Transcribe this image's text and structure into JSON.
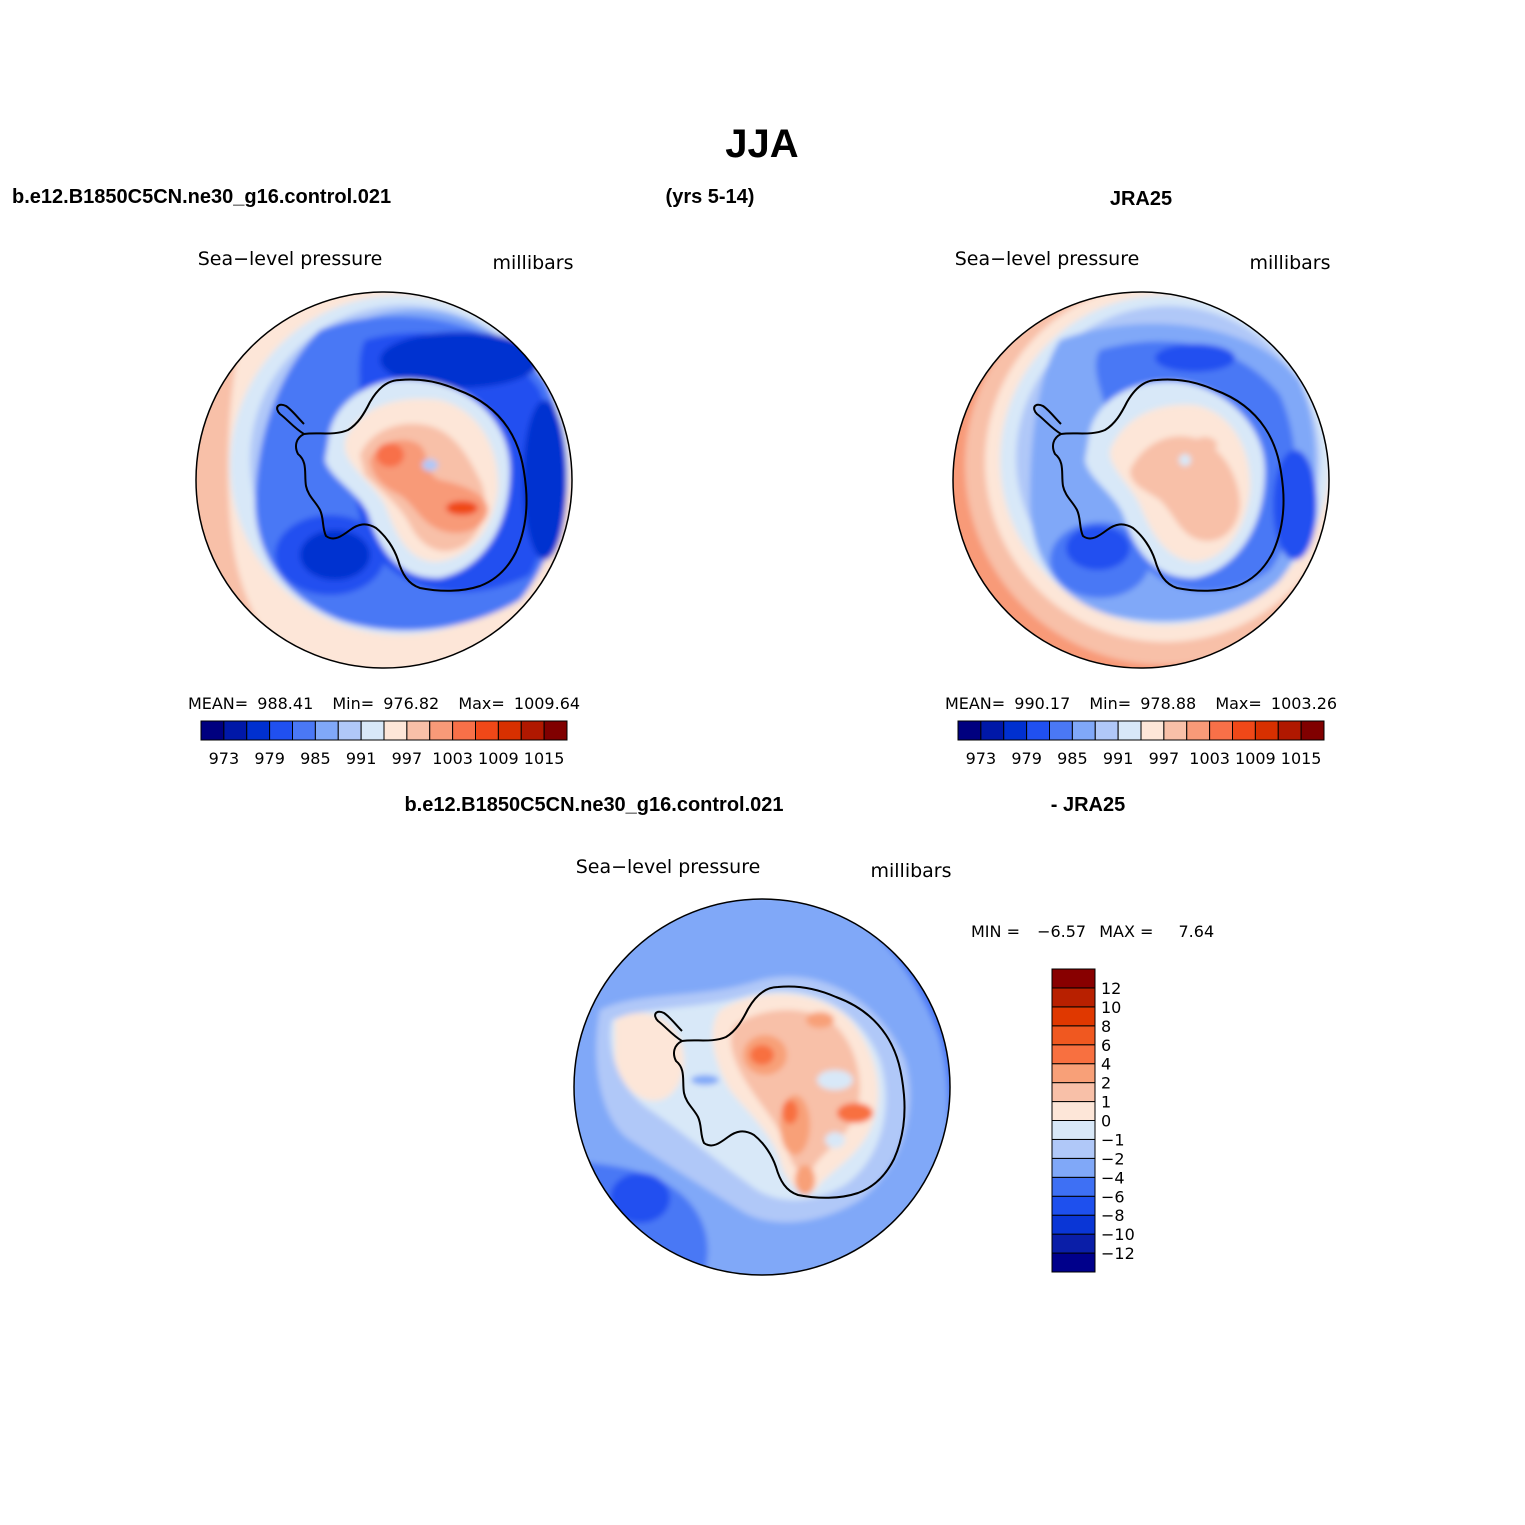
{
  "figure": {
    "title": "JJA",
    "case_label": "b.e12.B1850C5CN.ne30_g16.control.021",
    "years_label": "(yrs 5-14)",
    "obs_label": "JRA25",
    "diff_case_label": "b.e12.B1850C5CN.ne30_g16.control.021",
    "diff_obs_label": "- JRA25"
  },
  "palette": {
    "abs": [
      "#00007f",
      "#0018a8",
      "#0030d0",
      "#2050f0",
      "#4a78f5",
      "#80a8f8",
      "#b0c8f8",
      "#d8e8f8",
      "#fde6d8",
      "#f8c0a8",
      "#f89a78",
      "#f87048",
      "#f04818",
      "#d83000",
      "#b01800",
      "#800000"
    ],
    "diff": [
      "#00008b",
      "#0a1ea8",
      "#0a36d6",
      "#1e50ee",
      "#3e70f4",
      "#80a8f8",
      "#b0c8f8",
      "#d8e8f8",
      "#fde6d8",
      "#f8c0a8",
      "#f8a078",
      "#f87040",
      "#f05820",
      "#e03800",
      "#b82000",
      "#880000"
    ]
  },
  "chart_data": [
    {
      "type": "heatmap",
      "projection": "polar-stereographic-south",
      "title": "Sea−level pressure",
      "units": "millibars",
      "stats": {
        "mean_label": "MEAN=",
        "mean": "988.41",
        "min_label": "Min=",
        "min": "976.82",
        "max_label": "Max=",
        "max": "1009.64"
      },
      "colorbar": {
        "orientation": "horizontal",
        "levels": [
          973,
          976,
          979,
          982,
          985,
          988,
          991,
          994,
          997,
          1000,
          1003,
          1006,
          1009,
          1012,
          1015
        ],
        "tick_labels": [
          "973",
          "979",
          "985",
          "991",
          "997",
          "1003",
          "1009",
          "1015"
        ]
      }
    },
    {
      "type": "heatmap",
      "projection": "polar-stereographic-south",
      "title": "Sea−level pressure",
      "units": "millibars",
      "stats": {
        "mean_label": "MEAN=",
        "mean": "990.17",
        "min_label": "Min=",
        "min": "978.88",
        "max_label": "Max=",
        "max": "1003.26"
      },
      "colorbar": {
        "orientation": "horizontal",
        "levels": [
          973,
          976,
          979,
          982,
          985,
          988,
          991,
          994,
          997,
          1000,
          1003,
          1006,
          1009,
          1012,
          1015
        ],
        "tick_labels": [
          "973",
          "979",
          "985",
          "991",
          "997",
          "1003",
          "1009",
          "1015"
        ]
      }
    },
    {
      "type": "heatmap",
      "projection": "polar-stereographic-south",
      "title": "Sea−level pressure",
      "units": "millibars",
      "stats": {
        "min_label": "MIN =",
        "min": "−6.57",
        "max_label": "MAX =",
        "max": "7.64"
      },
      "colorbar": {
        "orientation": "vertical",
        "levels": [
          12,
          10,
          8,
          6,
          4,
          2,
          1,
          0,
          -1,
          -2,
          -4,
          -6,
          -8,
          -10,
          -12
        ],
        "tick_labels": [
          "12",
          "10",
          "8",
          "6",
          "4",
          "2",
          "1",
          "0",
          "−1",
          "−2",
          "−4",
          "−6",
          "−8",
          "−10",
          "−12"
        ]
      }
    }
  ]
}
